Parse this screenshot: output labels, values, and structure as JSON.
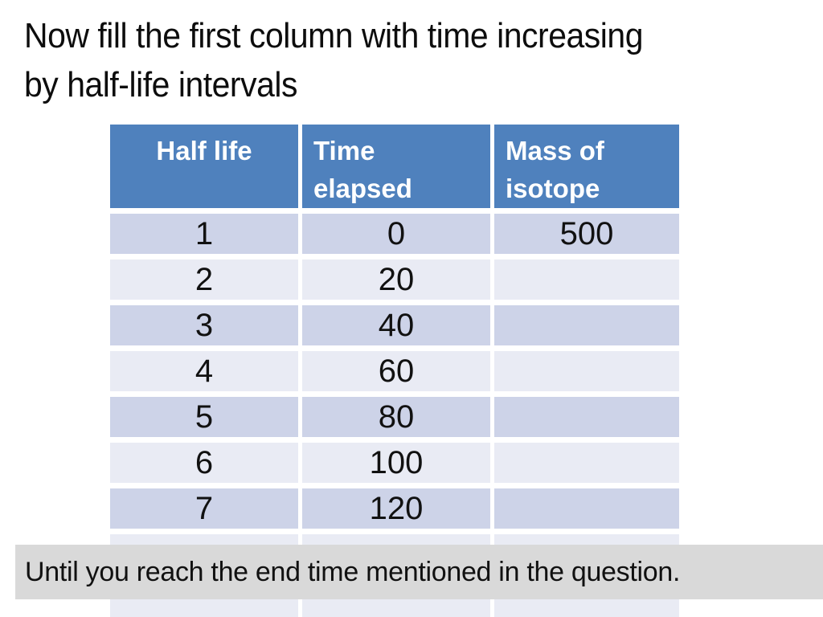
{
  "title": {
    "line1": "Now fill the first column with time increasing",
    "line2": "by half-life intervals"
  },
  "table": {
    "headers": [
      "Half life",
      "Time elapsed",
      "Mass of isotope"
    ],
    "rows": [
      [
        "1",
        "0",
        "500"
      ],
      [
        "2",
        "20",
        ""
      ],
      [
        "3",
        "40",
        ""
      ],
      [
        "4",
        "60",
        ""
      ],
      [
        "5",
        "80",
        ""
      ],
      [
        "6",
        "100",
        ""
      ],
      [
        "7",
        "120",
        ""
      ],
      [
        "",
        "",
        ""
      ],
      [
        "",
        "",
        ""
      ]
    ]
  },
  "banner": {
    "text": "Until you reach the end time mentioned in the question."
  },
  "colors": {
    "header_bg": "#4f81bd",
    "header_text": "#ffffff",
    "row_dark": "#cdd3e8",
    "row_light": "#e9ebf4",
    "banner_bg": "#d9d9d9",
    "slide_bg": "#ffffff",
    "text": "#0d0d0d"
  }
}
